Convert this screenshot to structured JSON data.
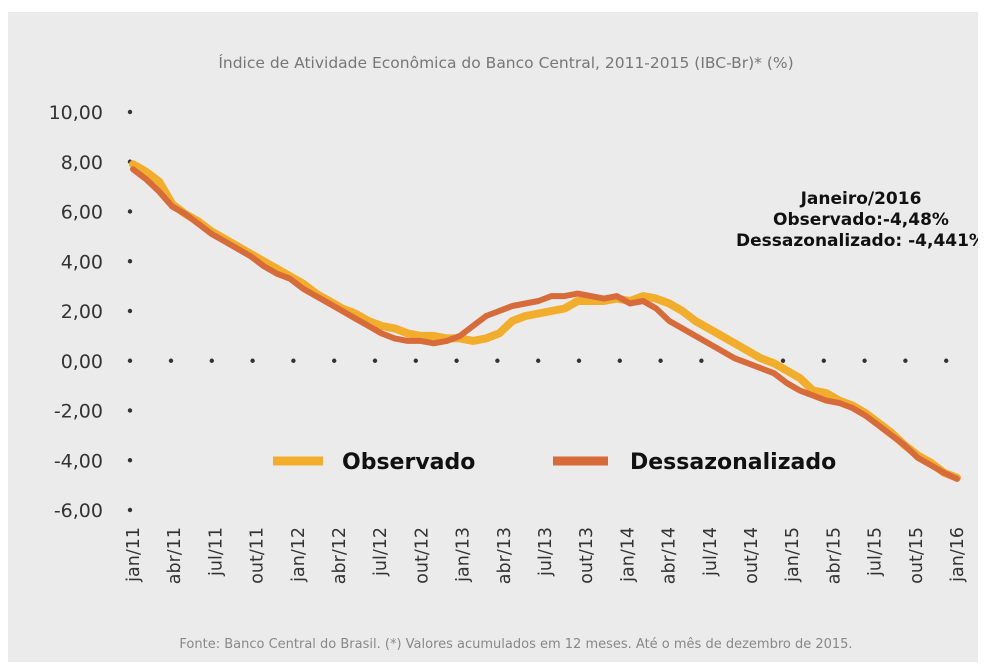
{
  "chart_data": {
    "type": "line",
    "title": "Índice de Atividade Econômica do Banco Central, 2011-2015 (IBC-Br)* (%)",
    "source": "Fonte: Banco Central do Brasil. (*) Valores acumulados em 12 meses. Até o mês de dezembro de 2015.",
    "ylim": [
      -6,
      10
    ],
    "yticks": [
      "10,00",
      "8,00",
      "6,00",
      "4,00",
      "2,00",
      "0,00",
      "-2,00",
      "-4,00",
      "-6,00"
    ],
    "ytick_values": [
      10,
      8,
      6,
      4,
      2,
      0,
      -2,
      -4,
      -6
    ],
    "xticks": [
      "jan/11",
      "abr/11",
      "jul/11",
      "out/11",
      "jan/12",
      "abr/12",
      "jul/12",
      "out/12",
      "jan/13",
      "abr/13",
      "jul/13",
      "out/13",
      "jan/14",
      "abr/14",
      "jul/14",
      "out/14",
      "jan/15",
      "abr/15",
      "jul/15",
      "out/15",
      "jan/16"
    ],
    "annotation": [
      "Janeiro/2016",
      "Observado:-4,48%",
      "Dessazonalizado: -4,441%"
    ],
    "legend_position": "bottom-center",
    "series": [
      {
        "name": "Observado",
        "color": "#f2ad2b",
        "values": [
          7.9,
          7.6,
          7.2,
          6.3,
          5.9,
          5.6,
          5.2,
          4.9,
          4.6,
          4.3,
          4.0,
          3.7,
          3.4,
          3.1,
          2.7,
          2.4,
          2.1,
          1.9,
          1.6,
          1.4,
          1.3,
          1.1,
          1.0,
          1.0,
          0.9,
          0.9,
          0.8,
          0.9,
          1.1,
          1.6,
          1.8,
          1.9,
          2.0,
          2.1,
          2.4,
          2.4,
          2.4,
          2.5,
          2.4,
          2.6,
          2.5,
          2.3,
          2.0,
          1.6,
          1.3,
          1.0,
          0.7,
          0.4,
          0.1,
          -0.1,
          -0.4,
          -0.7,
          -1.2,
          -1.3,
          -1.6,
          -1.8,
          -2.1,
          -2.5,
          -2.9,
          -3.4,
          -3.8,
          -4.1,
          -4.5,
          -4.7
        ]
      },
      {
        "name": "Dessazonalizado",
        "color": "#d76b3a",
        "values": [
          7.7,
          7.3,
          6.8,
          6.2,
          5.9,
          5.5,
          5.1,
          4.8,
          4.5,
          4.2,
          3.8,
          3.5,
          3.3,
          2.9,
          2.6,
          2.3,
          2.0,
          1.7,
          1.4,
          1.1,
          0.9,
          0.8,
          0.8,
          0.7,
          0.8,
          1.0,
          1.4,
          1.8,
          2.0,
          2.2,
          2.3,
          2.4,
          2.6,
          2.6,
          2.7,
          2.6,
          2.5,
          2.6,
          2.3,
          2.4,
          2.1,
          1.6,
          1.3,
          1.0,
          0.7,
          0.4,
          0.1,
          -0.1,
          -0.3,
          -0.5,
          -0.9,
          -1.2,
          -1.4,
          -1.6,
          -1.7,
          -1.9,
          -2.2,
          -2.6,
          -3.0,
          -3.4,
          -3.9,
          -4.2,
          -4.5,
          -4.75
        ]
      }
    ]
  }
}
